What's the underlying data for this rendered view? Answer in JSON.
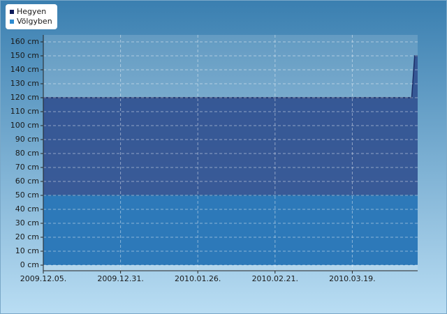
{
  "chart_data": {
    "type": "area",
    "x": [
      "2009-12-05",
      "2010-04-08",
      "2010-04-09",
      "2010-04-10"
    ],
    "series": [
      {
        "name": "Hegyen",
        "color": "#2f4f8f",
        "values": [
          120,
          120,
          150,
          150
        ]
      },
      {
        "name": "Völgyben",
        "color": "#2d79b9",
        "values": [
          50,
          50,
          50,
          50
        ]
      }
    ],
    "xlim": [
      "2009-12-05",
      "2010-04-10"
    ],
    "xticks": [
      {
        "value": "2009-12-05",
        "label": "2009.12.05."
      },
      {
        "value": "2009-12-31",
        "label": "2009.12.31."
      },
      {
        "value": "2010-01-26",
        "label": "2010.01.26."
      },
      {
        "value": "2010-02-21",
        "label": "2010.02.21."
      },
      {
        "value": "2010-03-19",
        "label": "2010.03.19."
      }
    ],
    "ylim": [
      -4,
      165
    ],
    "yticks": [
      {
        "value": 0,
        "label": "0 cm"
      },
      {
        "value": 10,
        "label": "10 cm"
      },
      {
        "value": 20,
        "label": "20 cm"
      },
      {
        "value": 30,
        "label": "30 cm"
      },
      {
        "value": 40,
        "label": "40 cm"
      },
      {
        "value": 50,
        "label": "50 cm"
      },
      {
        "value": 60,
        "label": "60 cm"
      },
      {
        "value": 70,
        "label": "70 cm"
      },
      {
        "value": 80,
        "label": "80 cm"
      },
      {
        "value": 90,
        "label": "90 cm"
      },
      {
        "value": 100,
        "label": "100 cm"
      },
      {
        "value": 110,
        "label": "110 cm"
      },
      {
        "value": 120,
        "label": "120 cm"
      },
      {
        "value": 130,
        "label": "130 cm"
      },
      {
        "value": 140,
        "label": "140 cm"
      },
      {
        "value": 150,
        "label": "150 cm"
      },
      {
        "value": 160,
        "label": "160 cm"
      }
    ],
    "grid": true,
    "legend": "top-left"
  }
}
